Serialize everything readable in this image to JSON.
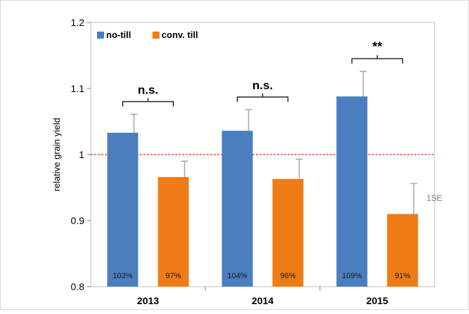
{
  "chart_data": {
    "type": "bar",
    "categories": [
      "2013",
      "2014",
      "2015"
    ],
    "series": [
      {
        "name": "no-till",
        "color": "#4a7ebf",
        "values": [
          1.033,
          1.036,
          1.088
        ],
        "errors": [
          0.028,
          0.032,
          0.038
        ],
        "labels": [
          "103%",
          "104%",
          "109%"
        ]
      },
      {
        "name": "conv. till",
        "color": "#ef7c16",
        "values": [
          0.966,
          0.963,
          0.91
        ],
        "errors": [
          0.024,
          0.03,
          0.046
        ],
        "labels": [
          "97%",
          "96%",
          "91%"
        ]
      }
    ],
    "significance": [
      "n.s.",
      "n.s.",
      "**"
    ],
    "error_bar_label": "1SE",
    "xlabel": "",
    "ylabel": "relative grain yield",
    "ylim": [
      0.8,
      1.2
    ],
    "yticks": [
      "0.8",
      "0.9",
      "1",
      "1.1",
      "1.2"
    ],
    "reference_line": 1.0,
    "reference_line_color": "#e8502a",
    "legend_position": "top-left",
    "grid": false
  }
}
